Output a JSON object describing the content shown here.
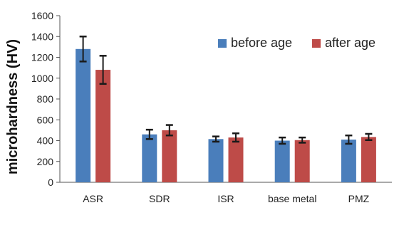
{
  "chart_data": {
    "type": "bar",
    "title": "",
    "xlabel": "",
    "ylabel": "microhardness (HV)",
    "ylim": [
      0,
      1600
    ],
    "yticks": [
      0,
      200,
      400,
      600,
      800,
      1000,
      1200,
      1400,
      1600
    ],
    "categories": [
      "ASR",
      "SDR",
      "ISR",
      "base metal",
      "PMZ"
    ],
    "series": [
      {
        "name": "before age",
        "color": "#4a7ebb",
        "values": [
          1280,
          460,
          415,
          400,
          410
        ],
        "errors": [
          120,
          45,
          25,
          30,
          40
        ]
      },
      {
        "name": "after age",
        "color": "#be4b48",
        "values": [
          1080,
          500,
          430,
          405,
          435
        ],
        "errors": [
          135,
          50,
          40,
          25,
          30
        ]
      }
    ],
    "grid": false,
    "legend": "top-right",
    "error_bar_color": "#1a1a1a"
  }
}
